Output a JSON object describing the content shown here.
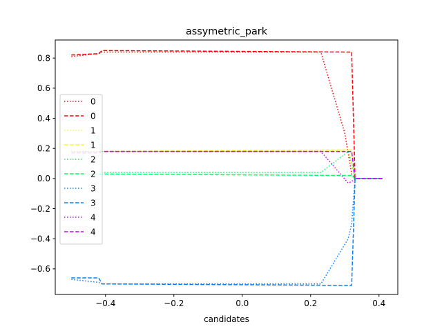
{
  "chart_data": {
    "type": "line",
    "title": "assymetric_park",
    "xlabel": "candidates",
    "ylabel": "",
    "xlim": [
      -0.547,
      0.455
    ],
    "ylim": [
      -0.77,
      0.92
    ],
    "x_ticks": [
      -0.4,
      -0.2,
      0.0,
      0.2,
      0.4
    ],
    "x_tick_labels": [
      "−0.4",
      "−0.2",
      "0.0",
      "0.2",
      "0.4"
    ],
    "y_ticks": [
      -0.6,
      -0.4,
      -0.2,
      0.0,
      0.2,
      0.4,
      0.6,
      0.8
    ],
    "y_tick_labels": [
      "−0.6",
      "−0.4",
      "−0.2",
      "0.0",
      "0.2",
      "0.4",
      "0.6",
      "0.8"
    ],
    "grid": false,
    "legend_position": "center-left",
    "series": [
      {
        "name": "0",
        "style": "dotted",
        "color": "#ff0000",
        "x": [
          -0.5,
          -0.42,
          -0.41,
          0.23,
          0.3,
          0.32,
          0.33,
          0.41
        ],
        "y": [
          0.81,
          0.83,
          0.84,
          0.84,
          0.3,
          0.03,
          0.0,
          0.0
        ]
      },
      {
        "name": "0",
        "style": "dashed",
        "color": "#ff0000",
        "x": [
          -0.5,
          -0.42,
          -0.41,
          0.31,
          0.32,
          0.33,
          0.41
        ],
        "y": [
          0.82,
          0.83,
          0.85,
          0.84,
          0.84,
          0.0,
          0.0
        ]
      },
      {
        "name": "1",
        "style": "dotted",
        "color": "#ffff00",
        "x": [
          -0.5,
          -0.42,
          -0.41,
          0.23,
          0.31,
          0.32,
          0.33,
          0.41
        ],
        "y": [
          0.19,
          0.2,
          0.18,
          0.18,
          0.19,
          0.1,
          0.0,
          0.0
        ]
      },
      {
        "name": "1",
        "style": "dashed",
        "color": "#ffff00",
        "x": [
          -0.5,
          -0.42,
          -0.41,
          0.31,
          0.32,
          0.33,
          0.41
        ],
        "y": [
          0.18,
          0.18,
          0.18,
          0.19,
          0.19,
          0.0,
          0.0
        ]
      },
      {
        "name": "2",
        "style": "dotted",
        "color": "#00ff66",
        "x": [
          -0.5,
          -0.42,
          -0.41,
          0.23,
          0.31,
          0.32,
          0.33,
          0.41
        ],
        "y": [
          0.05,
          0.28,
          0.04,
          0.04,
          0.18,
          0.1,
          0.0,
          0.0
        ]
      },
      {
        "name": "2",
        "style": "dashed",
        "color": "#00ff66",
        "x": [
          -0.5,
          -0.42,
          -0.41,
          0.31,
          0.32,
          0.33,
          0.41
        ],
        "y": [
          0.03,
          0.03,
          0.03,
          0.02,
          0.02,
          0.0,
          0.0
        ]
      },
      {
        "name": "3",
        "style": "dotted",
        "color": "#0080ff",
        "x": [
          -0.5,
          -0.42,
          -0.41,
          0.23,
          0.31,
          0.32,
          0.33,
          0.41
        ],
        "y": [
          -0.67,
          -0.69,
          -0.7,
          -0.7,
          -0.4,
          -0.3,
          0.0,
          0.0
        ]
      },
      {
        "name": "3",
        "style": "dashed",
        "color": "#0080ff",
        "x": [
          -0.5,
          -0.42,
          -0.41,
          0.31,
          0.32,
          0.33,
          0.41
        ],
        "y": [
          -0.66,
          -0.66,
          -0.7,
          -0.71,
          -0.71,
          0.0,
          0.0
        ]
      },
      {
        "name": "4",
        "style": "dotted",
        "color": "#cc00ff",
        "x": [
          -0.5,
          -0.42,
          -0.41,
          0.23,
          0.31,
          0.32,
          0.33,
          0.41
        ],
        "y": [
          0.18,
          0.18,
          0.18,
          0.18,
          -0.03,
          -0.02,
          0.0,
          0.0
        ]
      },
      {
        "name": "4",
        "style": "dashed",
        "color": "#cc00ff",
        "x": [
          -0.5,
          -0.42,
          -0.41,
          0.31,
          0.32,
          0.33,
          0.41
        ],
        "y": [
          0.17,
          0.17,
          0.18,
          0.18,
          0.18,
          0.0,
          0.0
        ]
      }
    ]
  }
}
